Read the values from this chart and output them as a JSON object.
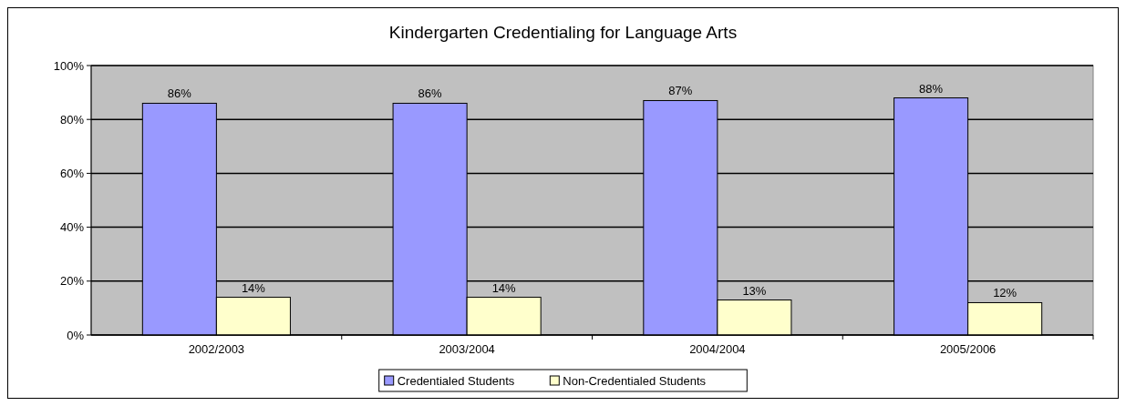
{
  "chart_data": {
    "type": "bar",
    "title": "Kindergarten Credentialing for Language Arts",
    "categories": [
      "2002/2003",
      "2003/2004",
      "2004/2004",
      "2005/2006"
    ],
    "series": [
      {
        "name": "Credentialed Students",
        "color": "#9999ff",
        "values": [
          86,
          86,
          87,
          88
        ],
        "value_labels": [
          "86%",
          "86%",
          "87%",
          "88%"
        ]
      },
      {
        "name": "Non-Credentialed Students",
        "color": "#ffffcc",
        "values": [
          14,
          14,
          13,
          12
        ],
        "value_labels": [
          "14%",
          "14%",
          "13%",
          "12%"
        ]
      }
    ],
    "ylim": [
      0,
      100
    ],
    "yticks": [
      {
        "value": 0,
        "label": "0%"
      },
      {
        "value": 20,
        "label": "20%"
      },
      {
        "value": 40,
        "label": "40%"
      },
      {
        "value": 60,
        "label": "60%"
      },
      {
        "value": 80,
        "label": "80%"
      },
      {
        "value": 100,
        "label": "100%"
      }
    ],
    "grid": "y",
    "legend": "bottom"
  }
}
